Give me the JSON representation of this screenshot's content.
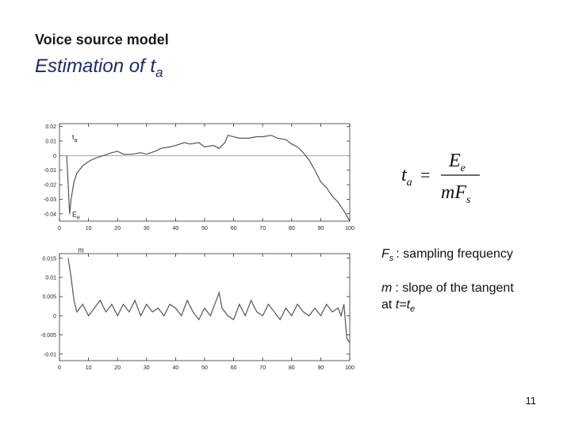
{
  "header": {
    "subtitle": "Voice source model",
    "title": "Estimation of t",
    "title_sub": "a"
  },
  "chart_data": [
    {
      "type": "line",
      "color": "#555555",
      "x": [
        2.5,
        3,
        3.5,
        4,
        5,
        6,
        8,
        10,
        12,
        15,
        18,
        20,
        22,
        25,
        28,
        30,
        33,
        35,
        38,
        40,
        43,
        45,
        48,
        50,
        53,
        55,
        57,
        58,
        60,
        62,
        65,
        68,
        70,
        73,
        75,
        78,
        80,
        82,
        84,
        86,
        88,
        90,
        92,
        94,
        96,
        98,
        100
      ],
      "values": [
        0.0,
        -0.02,
        -0.04,
        -0.03,
        -0.018,
        -0.012,
        -0.007,
        -0.004,
        -0.002,
        0.0,
        0.002,
        0.003,
        0.001,
        0.001,
        0.002,
        0.001,
        0.003,
        0.005,
        0.006,
        0.007,
        0.009,
        0.008,
        0.009,
        0.006,
        0.007,
        0.005,
        0.009,
        0.014,
        0.013,
        0.012,
        0.012,
        0.013,
        0.013,
        0.014,
        0.012,
        0.011,
        0.008,
        0.006,
        0.002,
        -0.003,
        -0.01,
        -0.018,
        -0.022,
        -0.028,
        -0.032,
        -0.038,
        -0.045
      ],
      "xlim": [
        0,
        100
      ],
      "xticks": [
        0,
        10,
        20,
        30,
        40,
        50,
        60,
        70,
        80,
        90,
        100
      ],
      "ylim": [
        -0.045,
        0.022
      ],
      "yticks": [
        0.02,
        0.01,
        0,
        -0.01,
        -0.02,
        -0.03,
        -0.04
      ],
      "zero_line": true,
      "grid": false,
      "annotations": [
        {
          "text": "t",
          "sub": "a"
        },
        {
          "text": "E",
          "sub": "e"
        }
      ]
    },
    {
      "type": "line",
      "color": "#555555",
      "x": [
        3,
        4,
        5,
        6,
        8,
        10,
        12,
        14,
        16,
        18,
        20,
        22,
        24,
        26,
        28,
        30,
        32,
        34,
        36,
        38,
        40,
        42,
        44,
        46,
        48,
        50,
        52,
        54,
        55,
        56,
        58,
        60,
        62,
        64,
        66,
        68,
        70,
        72,
        74,
        76,
        78,
        80,
        82,
        84,
        86,
        88,
        90,
        92,
        94,
        96,
        97,
        98,
        99,
        100
      ],
      "values": [
        0.015,
        0.01,
        0.004,
        0.001,
        0.003,
        0.0,
        0.002,
        0.004,
        0.001,
        0.003,
        0.0,
        0.003,
        0.001,
        0.004,
        0.0,
        0.003,
        0.001,
        0.002,
        0.0,
        0.003,
        0.002,
        0.0,
        0.004,
        0.001,
        -0.001,
        0.002,
        0.0,
        0.004,
        0.006,
        0.002,
        0.0,
        -0.001,
        0.003,
        0.0,
        0.004,
        0.001,
        0.0,
        0.003,
        0.001,
        -0.001,
        0.002,
        0.0,
        0.003,
        0.001,
        0.0,
        0.002,
        0.0,
        0.003,
        0.001,
        0.002,
        0.0,
        0.003,
        -0.006,
        -0.007
      ],
      "xlim": [
        0,
        100
      ],
      "xticks": [
        0,
        10,
        20,
        30,
        40,
        50,
        60,
        70,
        80,
        90,
        100
      ],
      "ylim": [
        -0.0117,
        0.0162
      ],
      "yticks": [
        0.015,
        0.01,
        0.005,
        0,
        -0.005,
        -0.01
      ],
      "zero_line": false,
      "grid": false,
      "annotations": [
        {
          "text": "m"
        }
      ]
    }
  ],
  "formula": {
    "lhs": "t",
    "lhs_sub": "a",
    "eq": "=",
    "num": "E",
    "num_sub": "e",
    "den": "mF",
    "den_sub": "s"
  },
  "notes": [
    {
      "symbol": "F",
      "sub": "s",
      "text": ": sampling frequency"
    },
    {
      "symbol": "m",
      "text": ": slope of the tangent",
      "line2": "at ",
      "line2_var": "t=t",
      "line2_sub": "e"
    }
  ],
  "page_number": "11"
}
